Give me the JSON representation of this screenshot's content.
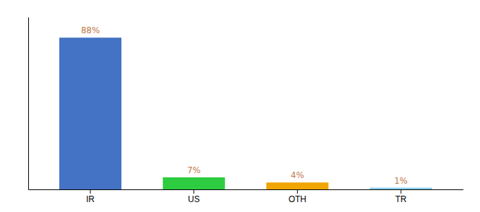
{
  "chart_data": {
    "type": "bar",
    "categories": [
      "IR",
      "US",
      "OTH",
      "TR"
    ],
    "values": [
      88,
      7,
      4,
      1
    ],
    "value_labels": [
      "88%",
      "7%",
      "4%",
      "1%"
    ],
    "data_labels": true,
    "colors": [
      "#4472c4",
      "#2ecc40",
      "#f0a500",
      "#87ceeb"
    ],
    "ylim": [
      0,
      100
    ],
    "grid": false,
    "tick_labels": "x"
  }
}
